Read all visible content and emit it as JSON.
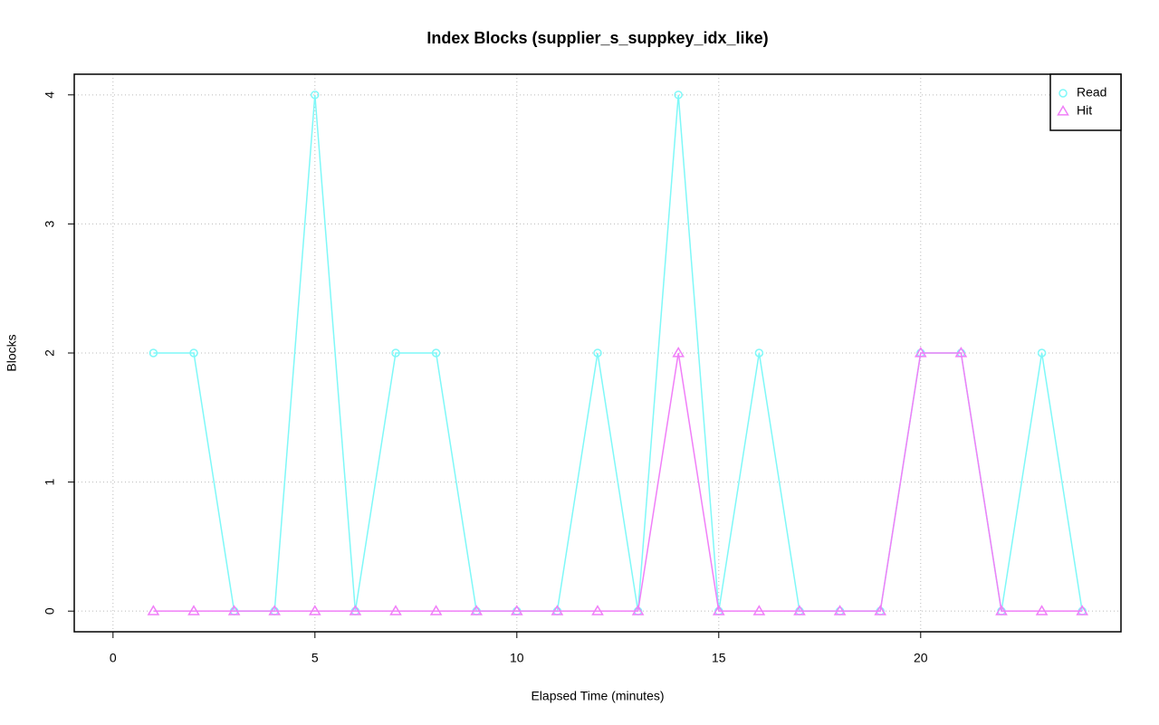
{
  "chart_data": {
    "type": "line",
    "title": "Index Blocks (supplier_s_suppkey_idx_like)",
    "x_label": "Elapsed Time (minutes)",
    "y_label": "Blocks",
    "x": [
      1,
      2,
      3,
      4,
      5,
      6,
      7,
      8,
      9,
      10,
      11,
      12,
      13,
      14,
      15,
      16,
      17,
      18,
      19,
      20,
      21,
      22,
      23,
      24
    ],
    "series": [
      {
        "name": "Read",
        "color": "#7ff8f8",
        "marker": "circle",
        "values": [
          2,
          2,
          0,
          0,
          4,
          0,
          2,
          2,
          0,
          0,
          0,
          2,
          0,
          4,
          0,
          2,
          0,
          0,
          0,
          2,
          2,
          0,
          2,
          0
        ]
      },
      {
        "name": "Hit",
        "color": "#f07ff8",
        "marker": "triangle",
        "values": [
          0,
          0,
          0,
          0,
          0,
          0,
          0,
          0,
          0,
          0,
          0,
          0,
          0,
          2,
          0,
          0,
          0,
          0,
          0,
          2,
          2,
          0,
          0,
          0
        ]
      }
    ],
    "xlim": [
      -0.96,
      24.96
    ],
    "ylim": [
      -0.16,
      4.16
    ],
    "xticks": [
      0,
      5,
      10,
      15,
      20
    ],
    "yticks": [
      0,
      1,
      2,
      3,
      4
    ],
    "grid": true,
    "legend": "top-right"
  }
}
